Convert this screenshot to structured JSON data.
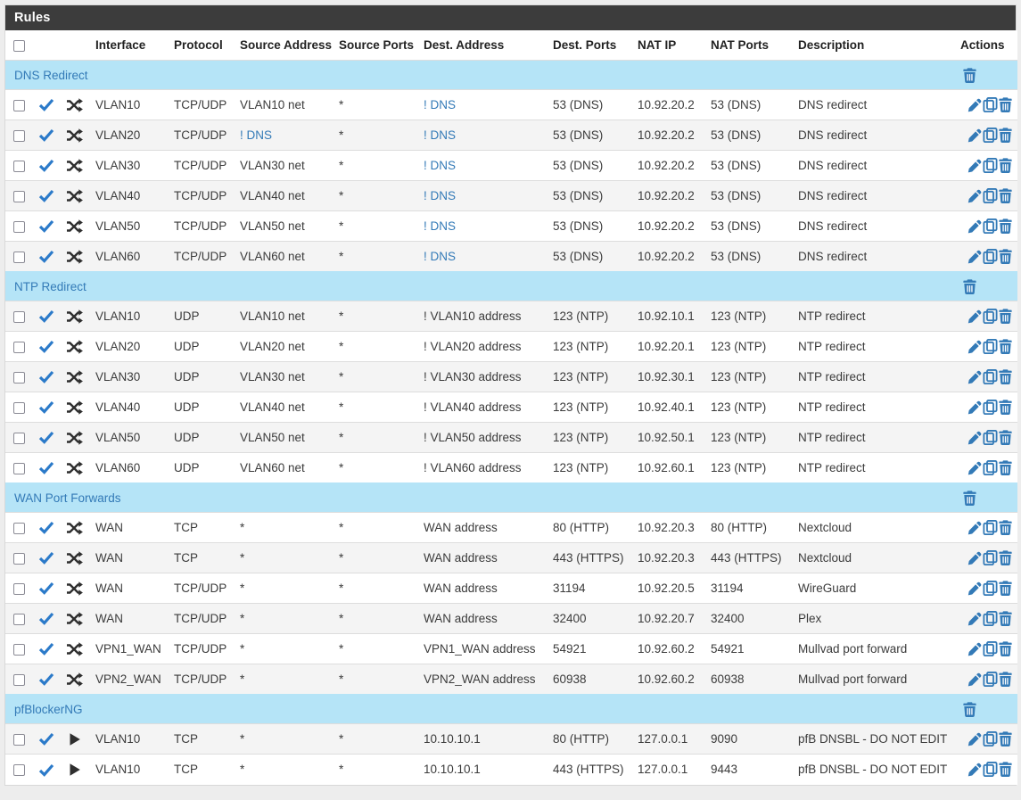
{
  "panel": {
    "title": "Rules"
  },
  "columns": [
    "",
    "",
    "",
    "Interface",
    "Protocol",
    "Source Address",
    "Source Ports",
    "Dest. Address",
    "Dest. Ports",
    "NAT IP",
    "NAT Ports",
    "Description",
    "Actions"
  ],
  "icons": {
    "row_status": "check-icon",
    "nat_rule": "shuffle-icon",
    "pfb_rule": "play-icon",
    "actions": [
      "pencil-edit-icon",
      "copy-icon",
      "trash-delete-icon"
    ],
    "separator_action": "trash-delete-icon"
  },
  "colors": {
    "accent": "#337ab7",
    "check-blue": "#2b7ac9",
    "heading-bg": "#3c3c3c",
    "separator-bg": "#b5e4f7",
    "stripe": "#f4f4f4",
    "border": "#dddddd",
    "text": "#3b3b3b"
  },
  "sections": [
    {
      "label": "DNS Redirect",
      "rows": [
        {
          "icon": "shuffle",
          "interface": "VLAN10",
          "protocol": "TCP/UDP",
          "src": "VLAN10 net",
          "src_link": false,
          "src_ports": "*",
          "dst": "! DNS",
          "dst_link": true,
          "dst_ports": "53 (DNS)",
          "nat_ip": "10.92.20.2",
          "nat_ports": "53 (DNS)",
          "desc": "DNS redirect"
        },
        {
          "icon": "shuffle",
          "interface": "VLAN20",
          "protocol": "TCP/UDP",
          "src": "! DNS",
          "src_link": true,
          "src_ports": "*",
          "dst": "! DNS",
          "dst_link": true,
          "dst_ports": "53 (DNS)",
          "nat_ip": "10.92.20.2",
          "nat_ports": "53 (DNS)",
          "desc": "DNS redirect"
        },
        {
          "icon": "shuffle",
          "interface": "VLAN30",
          "protocol": "TCP/UDP",
          "src": "VLAN30 net",
          "src_link": false,
          "src_ports": "*",
          "dst": "! DNS",
          "dst_link": true,
          "dst_ports": "53 (DNS)",
          "nat_ip": "10.92.20.2",
          "nat_ports": "53 (DNS)",
          "desc": "DNS redirect"
        },
        {
          "icon": "shuffle",
          "interface": "VLAN40",
          "protocol": "TCP/UDP",
          "src": "VLAN40 net",
          "src_link": false,
          "src_ports": "*",
          "dst": "! DNS",
          "dst_link": true,
          "dst_ports": "53 (DNS)",
          "nat_ip": "10.92.20.2",
          "nat_ports": "53 (DNS)",
          "desc": "DNS redirect"
        },
        {
          "icon": "shuffle",
          "interface": "VLAN50",
          "protocol": "TCP/UDP",
          "src": "VLAN50 net",
          "src_link": false,
          "src_ports": "*",
          "dst": "! DNS",
          "dst_link": true,
          "dst_ports": "53 (DNS)",
          "nat_ip": "10.92.20.2",
          "nat_ports": "53 (DNS)",
          "desc": "DNS redirect"
        },
        {
          "icon": "shuffle",
          "interface": "VLAN60",
          "protocol": "TCP/UDP",
          "src": "VLAN60 net",
          "src_link": false,
          "src_ports": "*",
          "dst": "! DNS",
          "dst_link": true,
          "dst_ports": "53 (DNS)",
          "nat_ip": "10.92.20.2",
          "nat_ports": "53 (DNS)",
          "desc": "DNS redirect"
        }
      ]
    },
    {
      "label": "NTP Redirect",
      "rows": [
        {
          "icon": "shuffle",
          "interface": "VLAN10",
          "protocol": "UDP",
          "src": "VLAN10 net",
          "src_link": false,
          "src_ports": "*",
          "dst": "! VLAN10 address",
          "dst_link": false,
          "dst_ports": "123 (NTP)",
          "nat_ip": "10.92.10.1",
          "nat_ports": "123 (NTP)",
          "desc": "NTP redirect"
        },
        {
          "icon": "shuffle",
          "interface": "VLAN20",
          "protocol": "UDP",
          "src": "VLAN20 net",
          "src_link": false,
          "src_ports": "*",
          "dst": "! VLAN20 address",
          "dst_link": false,
          "dst_ports": "123 (NTP)",
          "nat_ip": "10.92.20.1",
          "nat_ports": "123 (NTP)",
          "desc": "NTP redirect"
        },
        {
          "icon": "shuffle",
          "interface": "VLAN30",
          "protocol": "UDP",
          "src": "VLAN30 net",
          "src_link": false,
          "src_ports": "*",
          "dst": "! VLAN30 address",
          "dst_link": false,
          "dst_ports": "123 (NTP)",
          "nat_ip": "10.92.30.1",
          "nat_ports": "123 (NTP)",
          "desc": "NTP redirect"
        },
        {
          "icon": "shuffle",
          "interface": "VLAN40",
          "protocol": "UDP",
          "src": "VLAN40 net",
          "src_link": false,
          "src_ports": "*",
          "dst": "! VLAN40 address",
          "dst_link": false,
          "dst_ports": "123 (NTP)",
          "nat_ip": "10.92.40.1",
          "nat_ports": "123 (NTP)",
          "desc": "NTP redirect"
        },
        {
          "icon": "shuffle",
          "interface": "VLAN50",
          "protocol": "UDP",
          "src": "VLAN50 net",
          "src_link": false,
          "src_ports": "*",
          "dst": "! VLAN50 address",
          "dst_link": false,
          "dst_ports": "123 (NTP)",
          "nat_ip": "10.92.50.1",
          "nat_ports": "123 (NTP)",
          "desc": "NTP redirect"
        },
        {
          "icon": "shuffle",
          "interface": "VLAN60",
          "protocol": "UDP",
          "src": "VLAN60 net",
          "src_link": false,
          "src_ports": "*",
          "dst": "! VLAN60 address",
          "dst_link": false,
          "dst_ports": "123 (NTP)",
          "nat_ip": "10.92.60.1",
          "nat_ports": "123 (NTP)",
          "desc": "NTP redirect"
        }
      ]
    },
    {
      "label": "WAN Port Forwards",
      "rows": [
        {
          "icon": "shuffle",
          "interface": "WAN",
          "protocol": "TCP",
          "src": "*",
          "src_link": false,
          "src_ports": "*",
          "dst": "WAN address",
          "dst_link": false,
          "dst_ports": "80 (HTTP)",
          "nat_ip": "10.92.20.3",
          "nat_ports": "80 (HTTP)",
          "desc": "Nextcloud"
        },
        {
          "icon": "shuffle",
          "interface": "WAN",
          "protocol": "TCP",
          "src": "*",
          "src_link": false,
          "src_ports": "*",
          "dst": "WAN address",
          "dst_link": false,
          "dst_ports": "443 (HTTPS)",
          "nat_ip": "10.92.20.3",
          "nat_ports": "443 (HTTPS)",
          "desc": "Nextcloud"
        },
        {
          "icon": "shuffle",
          "interface": "WAN",
          "protocol": "TCP/UDP",
          "src": "*",
          "src_link": false,
          "src_ports": "*",
          "dst": "WAN address",
          "dst_link": false,
          "dst_ports": "31194",
          "nat_ip": "10.92.20.5",
          "nat_ports": "31194",
          "desc": "WireGuard"
        },
        {
          "icon": "shuffle",
          "interface": "WAN",
          "protocol": "TCP/UDP",
          "src": "*",
          "src_link": false,
          "src_ports": "*",
          "dst": "WAN address",
          "dst_link": false,
          "dst_ports": "32400",
          "nat_ip": "10.92.20.7",
          "nat_ports": "32400",
          "desc": "Plex"
        },
        {
          "icon": "shuffle",
          "interface": "VPN1_WAN",
          "protocol": "TCP/UDP",
          "src": "*",
          "src_link": false,
          "src_ports": "*",
          "dst": "VPN1_WAN address",
          "dst_link": false,
          "dst_ports": "54921",
          "nat_ip": "10.92.60.2",
          "nat_ports": "54921",
          "desc": "Mullvad port forward"
        },
        {
          "icon": "shuffle",
          "interface": "VPN2_WAN",
          "protocol": "TCP/UDP",
          "src": "*",
          "src_link": false,
          "src_ports": "*",
          "dst": "VPN2_WAN address",
          "dst_link": false,
          "dst_ports": "60938",
          "nat_ip": "10.92.60.2",
          "nat_ports": "60938",
          "desc": "Mullvad port forward"
        }
      ]
    },
    {
      "label": "pfBlockerNG",
      "rows": [
        {
          "icon": "play",
          "interface": "VLAN10",
          "protocol": "TCP",
          "src": "*",
          "src_link": false,
          "src_ports": "*",
          "dst": "10.10.10.1",
          "dst_link": false,
          "dst_ports": "80 (HTTP)",
          "nat_ip": "127.0.0.1",
          "nat_ports": "9090",
          "desc": "pfB DNSBL - DO NOT EDIT"
        },
        {
          "icon": "play",
          "interface": "VLAN10",
          "protocol": "TCP",
          "src": "*",
          "src_link": false,
          "src_ports": "*",
          "dst": "10.10.10.1",
          "dst_link": false,
          "dst_ports": "443 (HTTPS)",
          "nat_ip": "127.0.0.1",
          "nat_ports": "9443",
          "desc": "pfB DNSBL - DO NOT EDIT"
        }
      ]
    }
  ]
}
